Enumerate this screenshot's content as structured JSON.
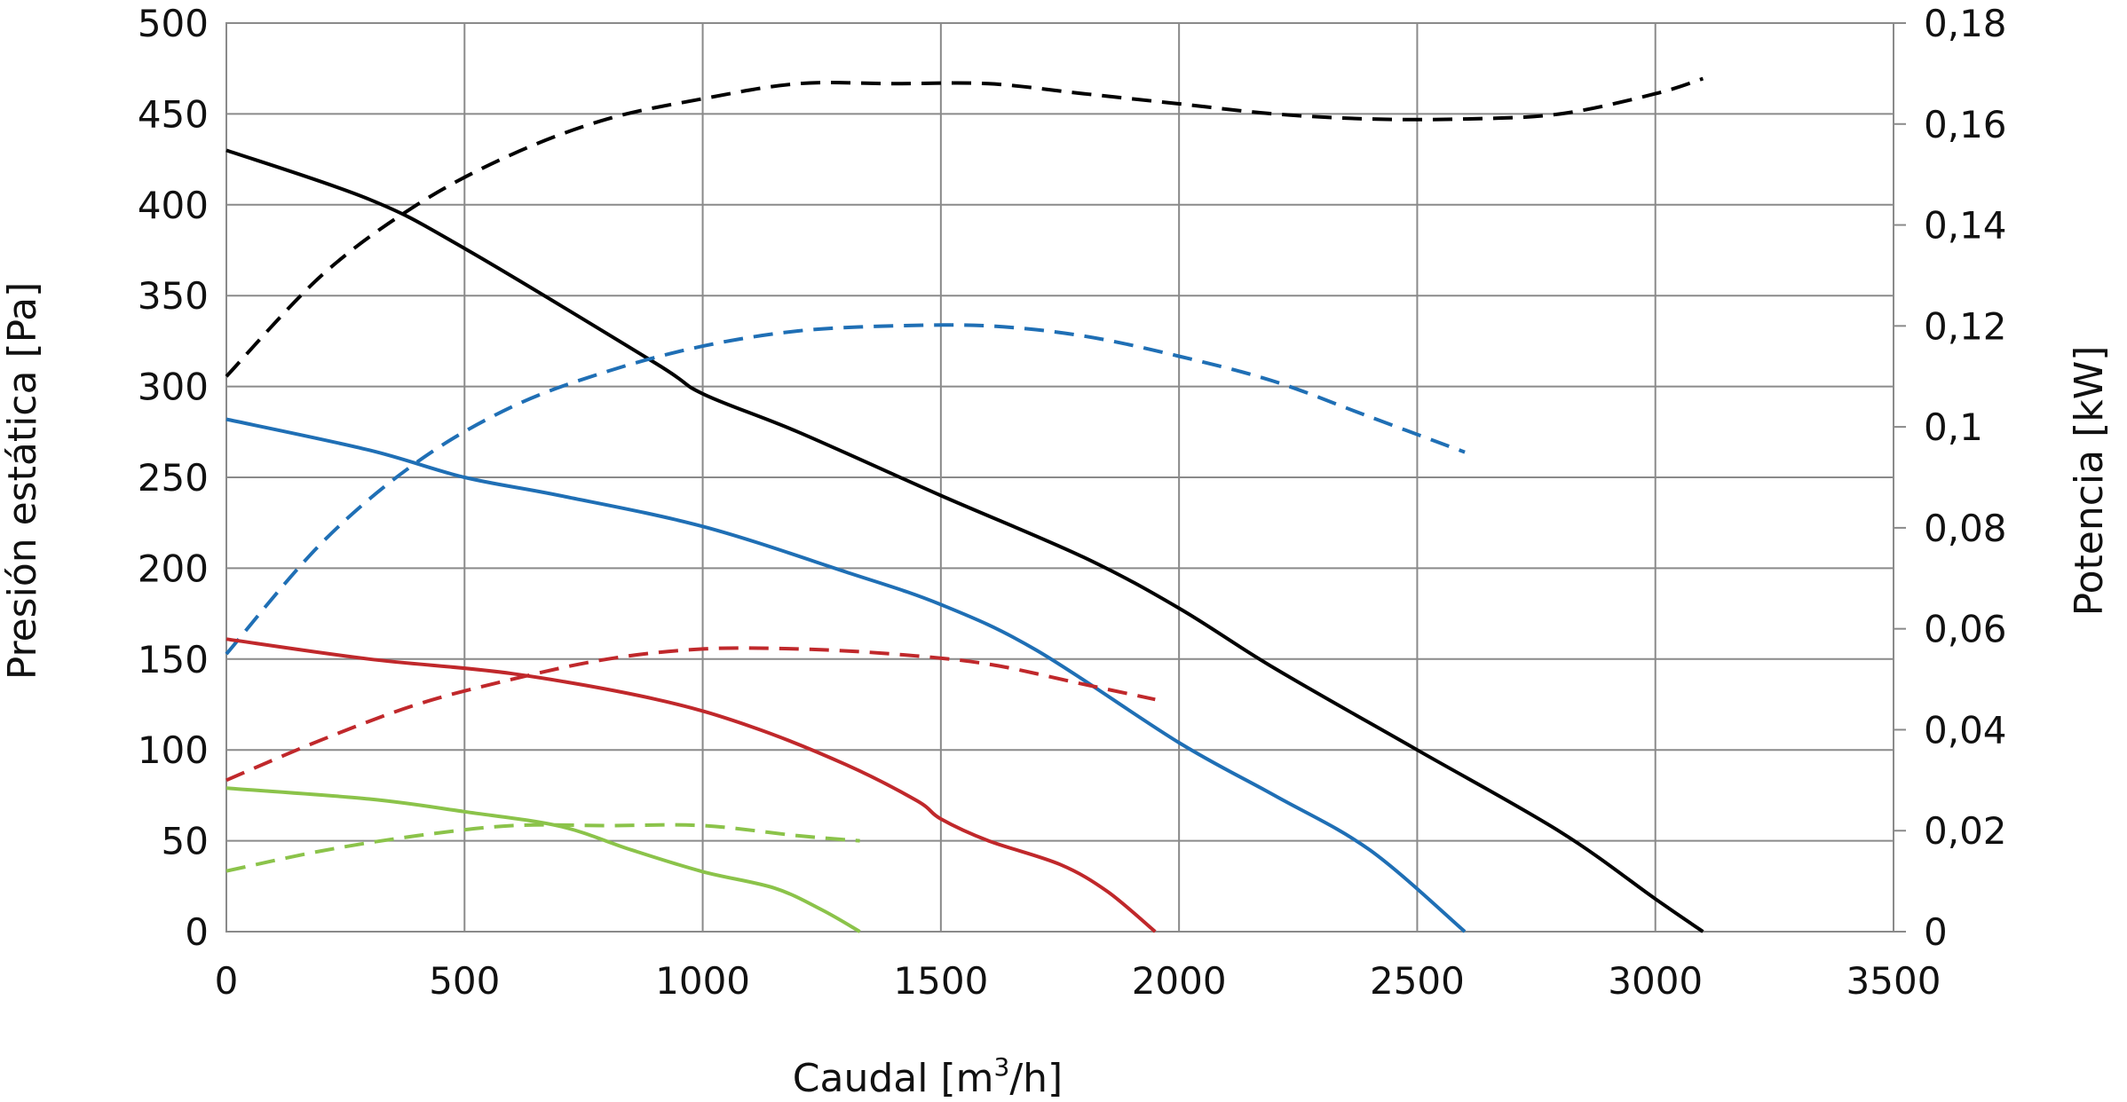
{
  "chart_data": {
    "type": "line",
    "x_axis": {
      "label_prefix": "Caudal [m",
      "label_sup": "3",
      "label_suffix": "/h]",
      "ticks": [
        "0",
        "500",
        "1000",
        "1500",
        "2000",
        "2500",
        "3000",
        "3500"
      ],
      "range": [
        0,
        3500
      ]
    },
    "y_left": {
      "label": "Presión estática [Pa]",
      "ticks": [
        "0",
        "50",
        "100",
        "150",
        "200",
        "250",
        "300",
        "350",
        "400",
        "450",
        "500"
      ],
      "range": [
        0,
        500
      ]
    },
    "y_right": {
      "label": "Potencia [kW]",
      "ticks": [
        "0",
        "0,02",
        "0,04",
        "0,06",
        "0,08",
        "0,1",
        "0,12",
        "0,14",
        "0,16",
        "0,18"
      ],
      "range": [
        0,
        0.18
      ]
    },
    "grid": true,
    "legend": "none",
    "series": [
      {
        "color": "#000000",
        "style": "solid",
        "axis": "left",
        "x": [
          0,
          300,
          500,
          900,
          1000,
          1200,
          1500,
          1800,
          2000,
          2200,
          2500,
          2800,
          3000,
          3100
        ],
        "y": [
          430,
          403,
          376,
          313,
          296,
          275,
          240,
          206,
          178,
          145,
          100,
          55,
          18,
          0
        ]
      },
      {
        "color": "#000000",
        "style": "dashed",
        "axis": "right",
        "x": [
          0,
          200,
          400,
          600,
          800,
          1000,
          1200,
          1400,
          1600,
          1800,
          2000,
          2200,
          2400,
          2600,
          2800,
          3000,
          3100
        ],
        "y": [
          0.11,
          0.13,
          0.144,
          0.154,
          0.161,
          0.165,
          0.168,
          0.168,
          0.168,
          0.166,
          0.164,
          0.162,
          0.161,
          0.161,
          0.162,
          0.166,
          0.169
        ]
      },
      {
        "color": "#1f6fb5",
        "style": "solid",
        "axis": "left",
        "x": [
          0,
          300,
          500,
          700,
          1000,
          1300,
          1500,
          1700,
          2000,
          2200,
          2400,
          2600
        ],
        "y": [
          282,
          265,
          250,
          240,
          223,
          198,
          180,
          155,
          104,
          75,
          45,
          0
        ]
      },
      {
        "color": "#1f6fb5",
        "style": "dashed",
        "axis": "right",
        "x": [
          0,
          200,
          400,
          600,
          800,
          1000,
          1200,
          1400,
          1600,
          1800,
          2000,
          2200,
          2400,
          2600
        ],
        "y": [
          0.055,
          0.077,
          0.093,
          0.104,
          0.111,
          0.116,
          0.119,
          0.12,
          0.12,
          0.118,
          0.114,
          0.109,
          0.102,
          0.095
        ]
      },
      {
        "color": "#c0282b",
        "style": "solid",
        "axis": "left",
        "x": [
          0,
          300,
          600,
          900,
          1100,
          1300,
          1450,
          1500,
          1600,
          1750,
          1850,
          1950
        ],
        "y": [
          161,
          150,
          142,
          128,
          113,
          92,
          72,
          62,
          50,
          37,
          22,
          0
        ]
      },
      {
        "color": "#c0282b",
        "style": "dashed",
        "axis": "right",
        "x": [
          0,
          200,
          400,
          600,
          800,
          1000,
          1200,
          1400,
          1600,
          1800,
          1950
        ],
        "y": [
          0.03,
          0.038,
          0.045,
          0.05,
          0.054,
          0.056,
          0.056,
          0.055,
          0.053,
          0.049,
          0.046
        ]
      },
      {
        "color": "#8bc34a",
        "style": "solid",
        "axis": "left",
        "x": [
          0,
          300,
          500,
          700,
          850,
          1000,
          1150,
          1250,
          1330
        ],
        "y": [
          79,
          73,
          66,
          58,
          45,
          33,
          24,
          12,
          0
        ]
      },
      {
        "color": "#8bc34a",
        "style": "dashed",
        "axis": "right",
        "x": [
          0,
          200,
          400,
          600,
          800,
          1000,
          1200,
          1330
        ],
        "y": [
          0.012,
          0.016,
          0.019,
          0.021,
          0.021,
          0.021,
          0.019,
          0.018
        ]
      }
    ]
  }
}
